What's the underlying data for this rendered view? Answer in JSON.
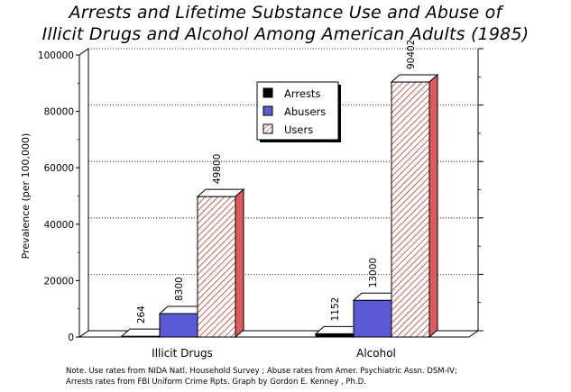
{
  "title_line1": "Arrests and Lifetime Substance Use and Abuse of",
  "title_line2": "Illicit Drugs and Alcohol Among American Adults (1985)",
  "note_line1": "Note.  Use rates from NIDA Natl. Household Survey ;  Abuse rates from Amer. Psychiatric Assn. DSM-IV;",
  "note_line2": "Arrests rates from FBI Uniform Crime Rpts.  Graph by Gordon E. Kenney , Ph.D.",
  "chart_data": {
    "type": "bar",
    "title": "Arrests and Lifetime Substance Use and Abuse of Illicit Drugs and Alcohol Among American Adults (1985)",
    "categories": [
      "Illicit Drugs",
      "Alcohol"
    ],
    "series": [
      {
        "name": "Arrests",
        "values": [
          264,
          1152
        ],
        "color": "#000000"
      },
      {
        "name": "Abusers",
        "values": [
          8300,
          13000
        ],
        "color": "#5a5ad6"
      },
      {
        "name": "Users",
        "values": [
          49800,
          90402
        ],
        "color": "#e05a5a"
      }
    ],
    "value_labels": [
      [
        "264",
        "1152"
      ],
      [
        "8300",
        "13000"
      ],
      [
        "49800",
        "90402"
      ]
    ],
    "ylabel": "Prevalence (per 100,000)",
    "xlabel": "",
    "ylim": [
      0,
      100000
    ],
    "yticks": [
      0,
      20000,
      40000,
      60000,
      80000,
      100000
    ],
    "ytick_labels": [
      "0",
      "20000",
      "40000",
      "60000",
      "80000",
      "100000"
    ],
    "grid": true,
    "legend_position": "top-center",
    "style": "3d"
  }
}
